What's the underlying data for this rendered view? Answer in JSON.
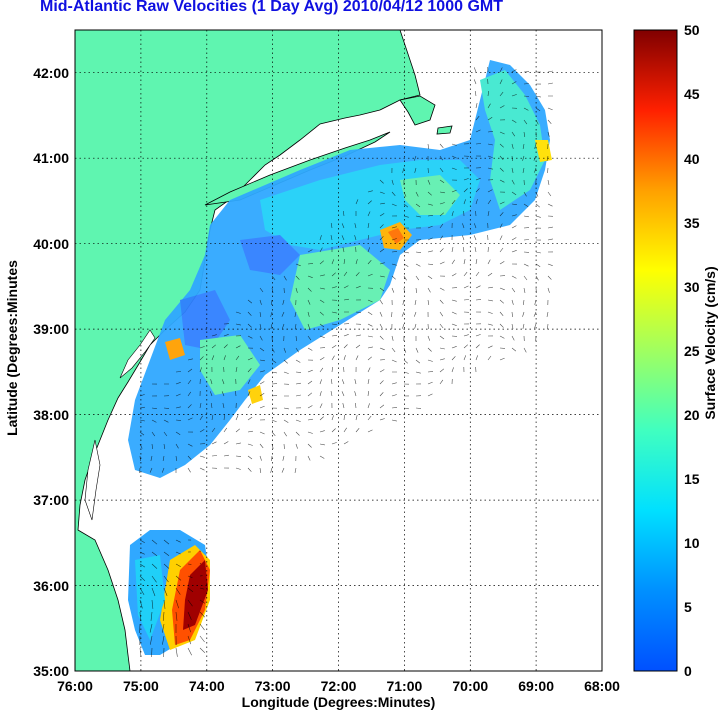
{
  "title": "Mid-Atlantic Raw Velocities (1 Day Avg) 2010/04/12 1000 GMT",
  "xlabel": "Longitude (Degrees:Minutes)",
  "ylabel": "Latitude (Degrees:Minutes",
  "colorbar": {
    "label": "Surface Velocity (cm/s)",
    "ticks": [
      "0",
      "5",
      "10",
      "15",
      "20",
      "25",
      "30",
      "35",
      "40",
      "45",
      "50"
    ],
    "min": 0,
    "max": 50,
    "colormap": "jet"
  },
  "map": {
    "lon_ticks": [
      "76:00",
      "75:00",
      "74:00",
      "73:00",
      "72:00",
      "71:00",
      "70:00",
      "69:00",
      "68:00"
    ],
    "lat_ticks": [
      "42:00",
      "41:00",
      "40:00",
      "39:00",
      "38:00",
      "37:00",
      "36:00",
      "35:00"
    ],
    "lon_range": [
      -76,
      -68
    ],
    "lat_range": [
      35,
      42.5
    ],
    "land_color": "#5ff5b0",
    "water_color": "#ffffff",
    "grid": "dotted"
  }
}
